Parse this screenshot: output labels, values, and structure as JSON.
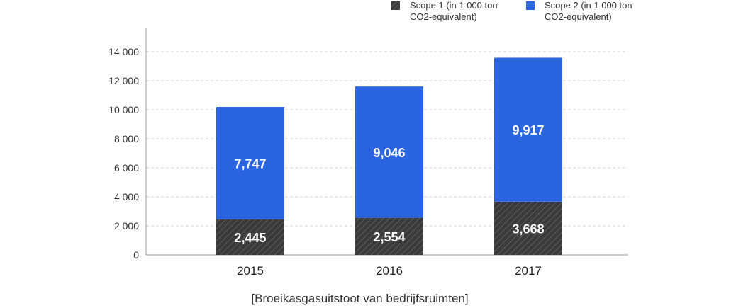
{
  "caption": "[Broeikasgasuitstoot van bedrijfsruimten]",
  "legend": [
    {
      "label": "Scope 1 (in 1 000 ton CO2-equivalent)",
      "color": "#3a3a3a",
      "pattern": "hatched"
    },
    {
      "label": "Scope 2 (in 1 000 ton CO2-equivalent)",
      "color": "#2b64e0",
      "pattern": "solid"
    }
  ],
  "chart_data": {
    "type": "bar",
    "stacked": true,
    "categories": [
      "2015",
      "2016",
      "2017"
    ],
    "series": [
      {
        "name": "Scope 1 (in 1 000 ton CO2-equivalent)",
        "values": [
          2445,
          2554,
          3668
        ],
        "labels": [
          "2,445",
          "2,554",
          "3,668"
        ],
        "color": "#3a3a3a"
      },
      {
        "name": "Scope 2 (in 1 000 ton CO2-equivalent)",
        "values": [
          7747,
          9046,
          9917
        ],
        "labels": [
          "7,747",
          "9,046",
          "9,917"
        ],
        "color": "#2b64e0"
      }
    ],
    "yticks": [
      0,
      2000,
      4000,
      6000,
      8000,
      10000,
      12000,
      14000
    ],
    "ytick_labels": [
      "0",
      "2 000",
      "4 000",
      "6 000",
      "8 000",
      "10 000",
      "12 000",
      "14 000"
    ],
    "ylim": [
      0,
      14000
    ],
    "grid": true,
    "legend_position": "top-right",
    "title": "",
    "xlabel": "",
    "ylabel": ""
  }
}
